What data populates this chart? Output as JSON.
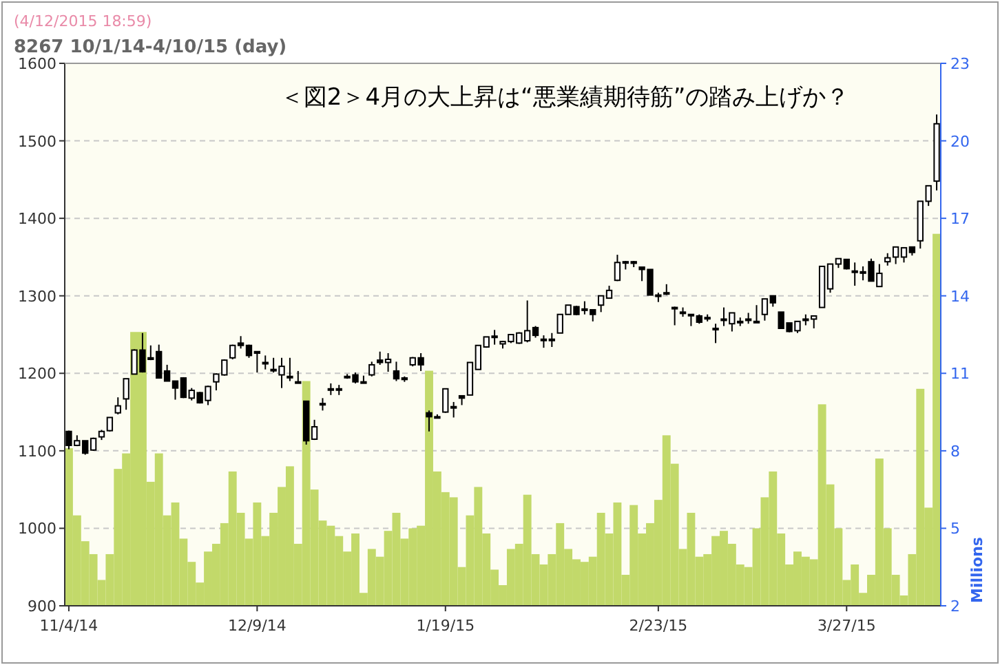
{
  "chart_data": {
    "type": "candlestick",
    "title": "＜図2＞4月の大上昇は“悪業績期待筋”の踏み上げか？",
    "subtitle": "8267 10/1/14-4/10/15 (day)",
    "annotations": [
      "(4/12/2015 18:59)"
    ],
    "y2label": "Millions",
    "ylim": [
      900,
      1600
    ],
    "yticks": [
      900,
      1000,
      1100,
      1200,
      1300,
      1400,
      1500,
      1600
    ],
    "y2lim": [
      2,
      23
    ],
    "y2ticks": [
      2,
      5,
      8,
      11,
      14,
      17,
      20,
      23
    ],
    "grid": "y",
    "categories": [
      "11/4/14",
      null,
      null,
      null,
      null,
      null,
      null,
      null,
      null,
      null,
      null,
      null,
      null,
      null,
      null,
      null,
      null,
      null,
      null,
      null,
      null,
      null,
      null,
      "12/9/14",
      null,
      null,
      null,
      null,
      null,
      null,
      null,
      null,
      null,
      null,
      null,
      null,
      null,
      null,
      null,
      null,
      null,
      null,
      null,
      null,
      null,
      null,
      "1/19/15",
      null,
      null,
      null,
      null,
      null,
      null,
      null,
      null,
      null,
      null,
      null,
      null,
      null,
      null,
      null,
      null,
      null,
      null,
      null,
      null,
      null,
      null,
      null,
      null,
      null,
      "2/23/15",
      null,
      null,
      null,
      null,
      null,
      null,
      null,
      null,
      null,
      null,
      null,
      null,
      null,
      null,
      null,
      null,
      null,
      null,
      null,
      null,
      null,
      null,
      "3/27/15",
      null,
      null,
      null,
      null,
      null,
      null,
      null,
      null,
      null,
      null,
      null
    ],
    "ohlc": [
      [
        1125,
        1126,
        1102,
        1107
      ],
      [
        1107,
        1120,
        1106,
        1113
      ],
      [
        1113,
        1113,
        1095,
        1097
      ],
      [
        1101,
        1117,
        1100,
        1116
      ],
      [
        1118,
        1127,
        1114,
        1125
      ],
      [
        1126,
        1143,
        1125,
        1143
      ],
      [
        1149,
        1169,
        1147,
        1158
      ],
      [
        1167,
        1193,
        1153,
        1193
      ],
      [
        1199,
        1231,
        1199,
        1230
      ],
      [
        1230,
        1252,
        1201,
        1202
      ],
      [
        1220,
        1236,
        1217,
        1218
      ],
      [
        1228,
        1237,
        1194,
        1194
      ],
      [
        1203,
        1211,
        1190,
        1190
      ],
      [
        1190,
        1190,
        1166,
        1181
      ],
      [
        1194,
        1195,
        1168,
        1169
      ],
      [
        1168,
        1181,
        1165,
        1178
      ],
      [
        1175,
        1176,
        1161,
        1162
      ],
      [
        1165,
        1184,
        1159,
        1183
      ],
      [
        1189,
        1200,
        1178,
        1199
      ],
      [
        1198,
        1218,
        1197,
        1217
      ],
      [
        1220,
        1237,
        1218,
        1236
      ],
      [
        1239,
        1248,
        1232,
        1236
      ],
      [
        1236,
        1237,
        1220,
        1223
      ],
      [
        1228,
        1228,
        1201,
        1226
      ],
      [
        1214,
        1223,
        1205,
        1213
      ],
      [
        1205,
        1220,
        1201,
        1204
      ],
      [
        1198,
        1220,
        1181,
        1209
      ],
      [
        1196,
        1220,
        1190,
        1195
      ],
      [
        1189,
        1203,
        1187,
        1188
      ],
      [
        1164,
        1164,
        1108,
        1113
      ],
      [
        1115,
        1140,
        1114,
        1131
      ],
      [
        1161,
        1168,
        1152,
        1161
      ],
      [
        1180,
        1187,
        1172,
        1179
      ],
      [
        1180,
        1185,
        1172,
        1180
      ],
      [
        1196,
        1199,
        1193,
        1195
      ],
      [
        1198,
        1201,
        1187,
        1189
      ],
      [
        1189,
        1197,
        1187,
        1188
      ],
      [
        1198,
        1215,
        1196,
        1211
      ],
      [
        1217,
        1228,
        1211,
        1214
      ],
      [
        1214,
        1226,
        1202,
        1218
      ],
      [
        1203,
        1215,
        1190,
        1193
      ],
      [
        1194,
        1196,
        1189,
        1192
      ],
      [
        1211,
        1221,
        1209,
        1220
      ],
      [
        1220,
        1226,
        1203,
        1211
      ],
      [
        1149,
        1152,
        1125,
        1144
      ],
      [
        1144,
        1147,
        1142,
        1144
      ],
      [
        1150,
        1180,
        1149,
        1180
      ],
      [
        1157,
        1163,
        1143,
        1157
      ],
      [
        1171,
        1171,
        1159,
        1168
      ],
      [
        1172,
        1214,
        1172,
        1214
      ],
      [
        1205,
        1236,
        1205,
        1236
      ],
      [
        1234,
        1247,
        1233,
        1247
      ],
      [
        1248,
        1256,
        1237,
        1248
      ],
      [
        1238,
        1242,
        1232,
        1241
      ],
      [
        1241,
        1250,
        1239,
        1250
      ],
      [
        1239,
        1253,
        1238,
        1252
      ],
      [
        1242,
        1294,
        1240,
        1255
      ],
      [
        1259,
        1261,
        1246,
        1249
      ],
      [
        1244,
        1249,
        1233,
        1243
      ],
      [
        1244,
        1252,
        1234,
        1243
      ],
      [
        1252,
        1276,
        1252,
        1276
      ],
      [
        1276,
        1288,
        1276,
        1288
      ],
      [
        1286,
        1287,
        1275,
        1276
      ],
      [
        1283,
        1293,
        1276,
        1283
      ],
      [
        1282,
        1282,
        1267,
        1276
      ],
      [
        1288,
        1300,
        1279,
        1300
      ],
      [
        1297,
        1313,
        1297,
        1307
      ],
      [
        1320,
        1353,
        1319,
        1343
      ],
      [
        1344,
        1345,
        1334,
        1344
      ],
      [
        1344,
        1345,
        1337,
        1342
      ],
      [
        1337,
        1337,
        1319,
        1334
      ],
      [
        1334,
        1334,
        1301,
        1301
      ],
      [
        1301,
        1304,
        1292,
        1301
      ],
      [
        1304,
        1315,
        1301,
        1303
      ],
      [
        1285,
        1286,
        1262,
        1284
      ],
      [
        1279,
        1285,
        1273,
        1279
      ],
      [
        1276,
        1276,
        1261,
        1276
      ],
      [
        1274,
        1276,
        1264,
        1266
      ],
      [
        1272,
        1276,
        1267,
        1272
      ],
      [
        1258,
        1264,
        1239,
        1258
      ],
      [
        1270,
        1285,
        1261,
        1270
      ],
      [
        1264,
        1278,
        1254,
        1278
      ],
      [
        1267,
        1272,
        1261,
        1267
      ],
      [
        1270,
        1278,
        1264,
        1270
      ],
      [
        1266,
        1288,
        1266,
        1267
      ],
      [
        1276,
        1296,
        1268,
        1296
      ],
      [
        1300,
        1300,
        1286,
        1291
      ],
      [
        1279,
        1279,
        1258,
        1258
      ],
      [
        1265,
        1265,
        1253,
        1254
      ],
      [
        1255,
        1267,
        1252,
        1267
      ],
      [
        1270,
        1276,
        1262,
        1270
      ],
      [
        1270,
        1274,
        1258,
        1274
      ],
      [
        1285,
        1338,
        1285,
        1338
      ],
      [
        1309,
        1341,
        1304,
        1341
      ],
      [
        1341,
        1348,
        1336,
        1348
      ],
      [
        1347,
        1347,
        1334,
        1335
      ],
      [
        1332,
        1343,
        1313,
        1332
      ],
      [
        1331,
        1338,
        1320,
        1331
      ],
      [
        1344,
        1348,
        1319,
        1319
      ],
      [
        1312,
        1341,
        1312,
        1329
      ],
      [
        1344,
        1355,
        1339,
        1349
      ],
      [
        1350,
        1363,
        1341,
        1363
      ],
      [
        1350,
        1362,
        1343,
        1362
      ],
      [
        1363,
        1363,
        1352,
        1356
      ],
      [
        1371,
        1422,
        1361,
        1422
      ],
      [
        1422,
        1442,
        1416,
        1442
      ],
      [
        1448,
        1534,
        1436,
        1522
      ]
    ],
    "series": [
      {
        "type": "bar",
        "axis": "y2",
        "color": "#c2d96a",
        "values": [
          8.1,
          5.5,
          4.5,
          4.0,
          3.0,
          4.0,
          7.3,
          7.9,
          12.6,
          12.6,
          6.8,
          7.9,
          5.5,
          6.0,
          4.6,
          3.7,
          2.9,
          4.1,
          4.4,
          5.2,
          7.2,
          5.6,
          4.6,
          6.0,
          4.7,
          5.6,
          6.6,
          7.4,
          4.4,
          10.7,
          6.5,
          5.3,
          5.1,
          4.7,
          4.1,
          4.8,
          2.5,
          4.2,
          3.9,
          4.9,
          5.6,
          4.6,
          5.0,
          5.1,
          11.1,
          7.2,
          6.4,
          6.2,
          3.5,
          5.5,
          6.6,
          4.8,
          3.4,
          2.8,
          4.2,
          4.4,
          6.3,
          4.0,
          3.6,
          4.0,
          5.2,
          4.2,
          3.8,
          3.7,
          3.9,
          5.6,
          4.8,
          6.0,
          3.2,
          5.9,
          4.8,
          5.2,
          6.1,
          8.6,
          7.5,
          4.2,
          5.6,
          3.9,
          4.0,
          4.7,
          4.9,
          4.4,
          3.6,
          3.5,
          5.0,
          6.2,
          7.2,
          4.8,
          3.6,
          4.1,
          3.9,
          3.8,
          9.8,
          6.7,
          5.0,
          3.0,
          3.6,
          2.5,
          3.2,
          7.7,
          5.0,
          3.2,
          2.4,
          4.0,
          10.4,
          5.8,
          16.4
        ]
      }
    ]
  }
}
